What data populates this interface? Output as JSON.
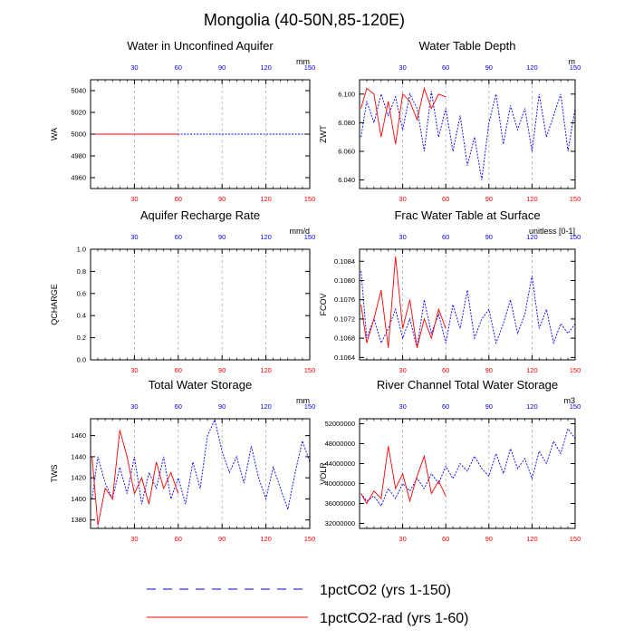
{
  "title": "Mongolia (40-50N,85-120E)",
  "colors": {
    "series1": "#0000ff",
    "series2": "#ff0000",
    "grid": "#b0b0b0",
    "axis": "#000000"
  },
  "legend": [
    {
      "label": "1pctCO2 (yrs 1-150)",
      "color": "#0000ff",
      "dash": "dashed"
    },
    {
      "label": "1pctCO2-rad (yrs 1-60)",
      "color": "#ff0000",
      "dash": "solid"
    }
  ],
  "chart_data": [
    {
      "type": "line",
      "title": "Water in Unconfined Aquifer",
      "ylabel": "WA",
      "units": "mm",
      "xlim": [
        0,
        150
      ],
      "ylim": [
        4950,
        5050
      ],
      "xticks": [
        30,
        60,
        90,
        120,
        150
      ],
      "yticks": [
        4960,
        4980,
        5000,
        5020,
        5040
      ],
      "series": [
        {
          "color": "#0000ff",
          "dash": "dashed",
          "x": [
            1,
            150
          ],
          "y": [
            5000,
            5000
          ]
        },
        {
          "color": "#ff0000",
          "dash": "solid",
          "x": [
            1,
            60
          ],
          "y": [
            5000,
            5000
          ]
        }
      ]
    },
    {
      "type": "line",
      "title": "Water Table Depth",
      "ylabel": "ZWT",
      "units": "m",
      "xlim": [
        0,
        150
      ],
      "ylim": [
        6.034,
        6.11
      ],
      "xticks": [
        30,
        60,
        90,
        120,
        150
      ],
      "yticks": [
        "6.040",
        "6.060",
        "6.080",
        "6.100"
      ],
      "series": [
        {
          "color": "#0000ff",
          "dash": "dashed",
          "x": [
            1,
            5,
            10,
            15,
            20,
            25,
            30,
            35,
            40,
            45,
            50,
            55,
            60,
            65,
            70,
            75,
            80,
            85,
            90,
            95,
            100,
            105,
            110,
            115,
            120,
            125,
            130,
            135,
            140,
            145,
            150
          ],
          "y": [
            6.07,
            6.095,
            6.08,
            6.1,
            6.085,
            6.098,
            6.075,
            6.1,
            6.09,
            6.06,
            6.102,
            6.07,
            6.09,
            6.06,
            6.085,
            6.05,
            6.07,
            6.04,
            6.08,
            6.1,
            6.065,
            6.092,
            6.075,
            6.09,
            6.06,
            6.1,
            6.07,
            6.085,
            6.1,
            6.06,
            6.09
          ]
        },
        {
          "color": "#ff0000",
          "dash": "solid",
          "x": [
            1,
            5,
            10,
            15,
            20,
            25,
            30,
            35,
            40,
            45,
            50,
            55,
            60
          ],
          "y": [
            6.09,
            6.104,
            6.1,
            6.07,
            6.095,
            6.065,
            6.1,
            6.095,
            6.082,
            6.104,
            6.09,
            6.1,
            6.098
          ]
        }
      ]
    },
    {
      "type": "line",
      "title": "Aquifer Recharge Rate",
      "ylabel": "QCHARGE",
      "units": "mm/d",
      "xlim": [
        0,
        150
      ],
      "ylim": [
        0,
        1
      ],
      "xticks": [
        30,
        60,
        90,
        120,
        150
      ],
      "yticks": [
        "0.0",
        "0.2",
        "0.4",
        "0.6",
        "0.8",
        "1.0"
      ],
      "series": []
    },
    {
      "type": "line",
      "title": "Frac Water Table at Surface",
      "ylabel": "FCOV",
      "units": "unitless [0-1]",
      "xlim": [
        0,
        150
      ],
      "ylim": [
        0.10635,
        0.10865
      ],
      "xticks": [
        30,
        60,
        90,
        120,
        150
      ],
      "yticks": [
        "0.1064",
        "0.1068",
        "0.1072",
        "0.1076",
        "0.1080",
        "0.1084"
      ],
      "series": [
        {
          "color": "#0000ff",
          "dash": "dashed",
          "x": [
            1,
            5,
            10,
            15,
            20,
            25,
            30,
            35,
            40,
            45,
            50,
            55,
            60,
            65,
            70,
            75,
            80,
            85,
            90,
            95,
            100,
            105,
            110,
            115,
            120,
            125,
            130,
            135,
            140,
            145,
            150
          ],
          "y": [
            0.1082,
            0.1068,
            0.1072,
            0.1067,
            0.107,
            0.1074,
            0.1068,
            0.1072,
            0.1066,
            0.1076,
            0.1069,
            0.1073,
            0.1067,
            0.1075,
            0.107,
            0.1078,
            0.1068,
            0.1072,
            0.1074,
            0.1067,
            0.1071,
            0.1076,
            0.1069,
            0.1073,
            0.1081,
            0.107,
            0.1074,
            0.1067,
            0.1071,
            0.1069,
            0.1071
          ]
        },
        {
          "color": "#ff0000",
          "dash": "solid",
          "x": [
            1,
            5,
            10,
            15,
            20,
            25,
            30,
            35,
            40,
            45,
            50,
            55,
            60
          ],
          "y": [
            0.1075,
            0.1067,
            0.1072,
            0.1078,
            0.1066,
            0.1085,
            0.107,
            0.1076,
            0.1066,
            0.1072,
            0.1068,
            0.1074,
            0.107
          ]
        }
      ]
    },
    {
      "type": "line",
      "title": "Total Water Storage",
      "ylabel": "TWS",
      "units": "mm",
      "xlim": [
        0,
        150
      ],
      "ylim": [
        1372,
        1476
      ],
      "xticks": [
        30,
        60,
        90,
        120,
        150
      ],
      "yticks": [
        1380,
        1400,
        1420,
        1440,
        1460
      ],
      "series": [
        {
          "color": "#0000ff",
          "dash": "dashed",
          "x": [
            1,
            5,
            10,
            15,
            20,
            25,
            30,
            35,
            40,
            45,
            50,
            55,
            60,
            65,
            70,
            75,
            80,
            85,
            90,
            95,
            100,
            105,
            110,
            115,
            120,
            125,
            130,
            135,
            140,
            145,
            150
          ],
          "y": [
            1400,
            1440,
            1415,
            1400,
            1430,
            1405,
            1440,
            1395,
            1425,
            1410,
            1440,
            1400,
            1420,
            1395,
            1435,
            1410,
            1460,
            1475,
            1445,
            1425,
            1440,
            1415,
            1450,
            1420,
            1400,
            1430,
            1410,
            1390,
            1425,
            1455,
            1435
          ]
        },
        {
          "color": "#ff0000",
          "dash": "solid",
          "x": [
            1,
            5,
            10,
            15,
            20,
            25,
            30,
            35,
            40,
            45,
            50,
            55,
            60
          ],
          "y": [
            1440,
            1375,
            1410,
            1400,
            1465,
            1440,
            1405,
            1420,
            1395,
            1435,
            1410,
            1425,
            1405
          ]
        }
      ]
    },
    {
      "type": "line",
      "title": "River Channel Total Water Storage",
      "ylabel": "VOLR",
      "units": "m3",
      "xlim": [
        0,
        150
      ],
      "ylim": [
        31000000,
        53000000
      ],
      "xticks": [
        30,
        60,
        90,
        120,
        150
      ],
      "yticks": [
        "32000000",
        "36000000",
        "40000000",
        "44000000",
        "48000000",
        "52000000"
      ],
      "series": [
        {
          "color": "#0000ff",
          "dash": "dashed",
          "x": [
            1,
            5,
            10,
            15,
            20,
            25,
            30,
            35,
            40,
            45,
            50,
            55,
            60,
            65,
            70,
            75,
            80,
            85,
            90,
            95,
            100,
            105,
            110,
            115,
            120,
            125,
            130,
            135,
            140,
            145,
            150
          ],
          "y": [
            38000000,
            36500000,
            37500000,
            35500000,
            39000000,
            37000000,
            40000000,
            38500000,
            41000000,
            39000000,
            42000000,
            40000000,
            43500000,
            41000000,
            44000000,
            42500000,
            45500000,
            43000000,
            41500000,
            46000000,
            42000000,
            47000000,
            43000000,
            45000000,
            41000000,
            46500000,
            44000000,
            48500000,
            46000000,
            51000000,
            49000000
          ]
        },
        {
          "color": "#ff0000",
          "dash": "solid",
          "x": [
            1,
            5,
            10,
            15,
            20,
            25,
            30,
            35,
            40,
            45,
            50,
            55,
            60
          ],
          "y": [
            38000000,
            36000000,
            38500000,
            37000000,
            47500000,
            39000000,
            42000000,
            36500000,
            41500000,
            45500000,
            38000000,
            40500000,
            37500000
          ]
        }
      ]
    }
  ]
}
